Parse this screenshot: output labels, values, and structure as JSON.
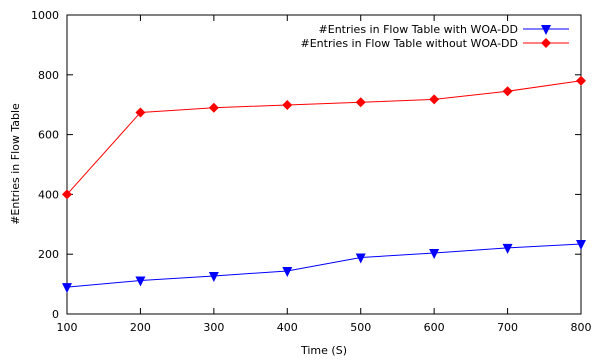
{
  "chart_data": {
    "type": "line",
    "xlabel": "Time (S)",
    "ylabel": "#Entries in Flow Table",
    "xlim": [
      100,
      800
    ],
    "ylim": [
      0,
      1000
    ],
    "xticks": [
      100,
      200,
      300,
      400,
      500,
      600,
      700,
      800
    ],
    "yticks": [
      0,
      200,
      400,
      600,
      800,
      1000
    ],
    "grid": false,
    "legend_position": "top-right",
    "x": [
      100,
      200,
      300,
      400,
      500,
      600,
      700,
      800
    ],
    "series": [
      {
        "name": "#Entries in Flow Table with WOA-DD",
        "values": [
          90,
          112,
          127,
          144,
          189,
          204,
          221,
          234
        ],
        "color": "#0000ff",
        "marker": "triangle-down"
      },
      {
        "name": "#Entries in Flow Table without WOA-DD",
        "values": [
          400,
          674,
          690,
          699,
          708,
          718,
          745,
          780
        ],
        "color": "#ff0000",
        "marker": "diamond"
      }
    ]
  }
}
